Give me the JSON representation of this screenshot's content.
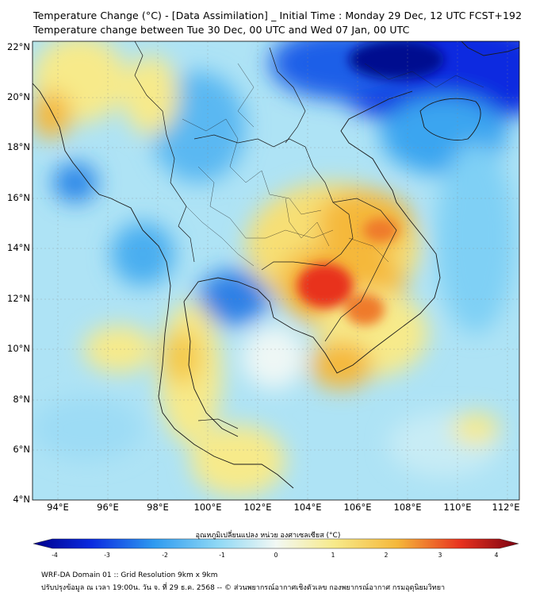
{
  "header": {
    "title_line1": "Temperature Change (°C) - [Data Assimilation] _ Initial Time : Monday 29 Dec, 12 UTC FCST+192",
    "title_line2": "Temperature change between Tue 30 Dec, 00 UTC and Wed 07 Jan, 00 UTC"
  },
  "map": {
    "lat_labels": [
      "22°N",
      "20°N",
      "18°N",
      "16°N",
      "14°N",
      "12°N",
      "10°N",
      "8°N",
      "6°N",
      "4°N"
    ],
    "lon_labels": [
      "94°E",
      "96°E",
      "98°E",
      "100°E",
      "102°E",
      "104°E",
      "106°E",
      "108°E",
      "110°E",
      "112°E"
    ],
    "lat_range": [
      4,
      22
    ],
    "lon_range": [
      93,
      112.5
    ],
    "colors": {
      "strong_cold": "#0b2be0",
      "cold": "#2f9bf0",
      "cool": "#8ed8f5",
      "neutral": "#eef7f5",
      "warm": "#f7ea8a",
      "orange": "#f5b83a",
      "hot": "#e8321f"
    }
  },
  "colorbar": {
    "title": "อุณหภูมิเปลี่ยนแปลง หน่วย องศาเซลเซียส (°C)",
    "ticks": [
      "-4",
      "-3",
      "-2",
      "-1",
      "0",
      "1",
      "2",
      "3",
      "4"
    ],
    "min": -4,
    "max": 4
  },
  "footer": {
    "line1": "WRF-DA Domain 01 :: Grid Resolution 9km x 9km",
    "line2": "ปรับปรุงข้อมูล ณ เวลา 19:00น. วัน จ. ที่ 29 ธ.ค. 2568 -- © ส่วนพยากรณ์อากาศเชิงตัวเลข กองพยากรณ์อากาศ กรมอุตุนิยมวิทยา"
  }
}
